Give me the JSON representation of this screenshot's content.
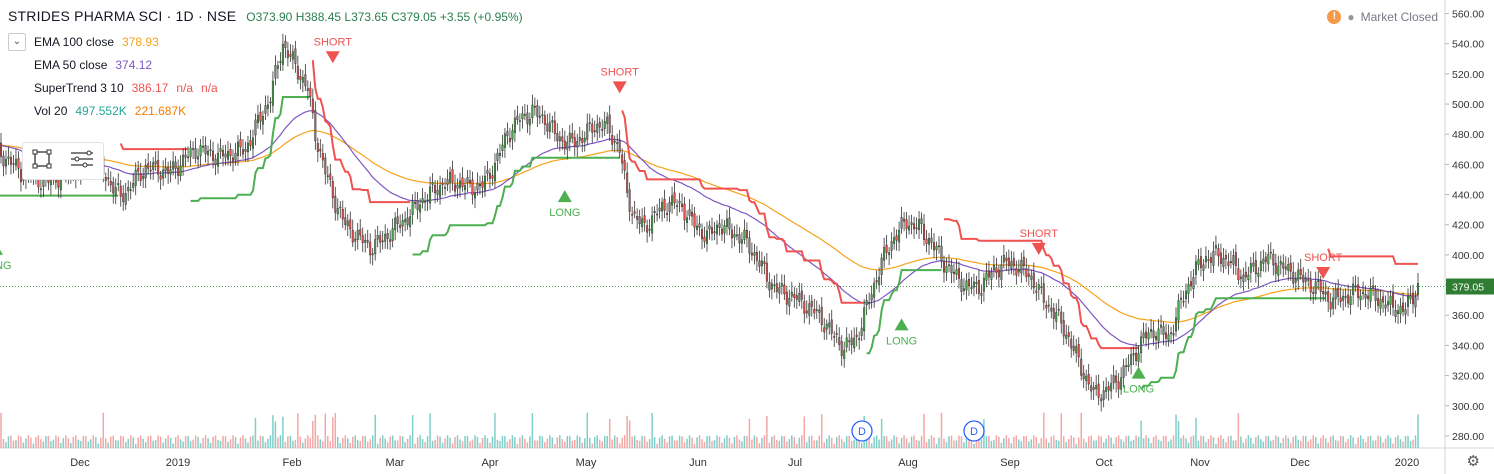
{
  "header": {
    "symbol": "STRIDES PHARMA SCI · 1D · NSE",
    "open": "O373.90",
    "high": "H388.45",
    "low": "L373.65",
    "close": "C379.05",
    "change": "+3.55 (+0.95%)",
    "market_status": "Market Closed"
  },
  "legend": [
    {
      "name": "EMA 100 close",
      "values": [
        "378.93"
      ],
      "colors": [
        "#f7a21b"
      ]
    },
    {
      "name": "EMA 50 close",
      "values": [
        "374.12"
      ],
      "colors": [
        "#7e57c2"
      ]
    },
    {
      "name": "SuperTrend 3 10",
      "values": [
        "386.17",
        "n/a",
        "n/a"
      ],
      "colors": [
        "#ef5350",
        "#ef5350",
        "#ef5350"
      ]
    },
    {
      "name": "Vol 20",
      "values": [
        "497.552K",
        "221.687K"
      ],
      "colors": [
        "#26a69a",
        "#f57c00"
      ]
    }
  ],
  "icons": {
    "collapse": "chevron-down-icon",
    "alert": "warning-icon",
    "settings": "gear-icon",
    "drawing": "rectangle-tool-icon",
    "lines": "lines-tool-icon"
  },
  "colors": {
    "up": "#4caf50",
    "down": "#ef5350",
    "ema100": "#f7a21b",
    "ema50": "#7e57c2",
    "st_up": "#4caf50",
    "st_down": "#ef5350",
    "vol_up": "#7fcfc8",
    "vol_down": "#f4a7a6",
    "last_price_bg": "#2e7d32"
  },
  "chart_data": {
    "type": "candlestick",
    "title": "STRIDES PHARMA SCI · 1D · NSE",
    "y_ticks": [
      280,
      300,
      320,
      340,
      360,
      380,
      400,
      420,
      440,
      460,
      480,
      500,
      520,
      540,
      560
    ],
    "ylim": [
      272,
      565
    ],
    "x_ticks": [
      "Dec",
      "2019",
      "Feb",
      "Mar",
      "Apr",
      "May",
      "Jun",
      "Jul",
      "Aug",
      "Sep",
      "Oct",
      "Nov",
      "Dec",
      "2020"
    ],
    "last_price": "379.05",
    "close_path": [
      [
        0,
        470
      ],
      [
        10,
        455
      ],
      [
        20,
        448
      ],
      [
        30,
        455
      ],
      [
        40,
        462
      ],
      [
        50,
        438
      ],
      [
        60,
        458
      ],
      [
        70,
        455
      ],
      [
        80,
        470
      ],
      [
        90,
        465
      ],
      [
        100,
        470
      ],
      [
        110,
        505
      ],
      [
        115,
        540
      ],
      [
        120,
        525
      ],
      [
        125,
        510
      ],
      [
        128,
        480
      ],
      [
        132,
        455
      ],
      [
        136,
        435
      ],
      [
        140,
        420
      ],
      [
        145,
        412
      ],
      [
        150,
        405
      ],
      [
        155,
        410
      ],
      [
        160,
        418
      ],
      [
        165,
        425
      ],
      [
        170,
        435
      ],
      [
        175,
        442
      ],
      [
        180,
        448
      ],
      [
        185,
        448
      ],
      [
        190,
        445
      ],
      [
        195,
        446
      ],
      [
        200,
        460
      ],
      [
        205,
        480
      ],
      [
        210,
        490
      ],
      [
        215,
        495
      ],
      [
        220,
        490
      ],
      [
        225,
        478
      ],
      [
        230,
        474
      ],
      [
        235,
        478
      ],
      [
        240,
        486
      ],
      [
        245,
        485
      ],
      [
        250,
        470
      ],
      [
        253,
        440
      ],
      [
        256,
        425
      ],
      [
        260,
        418
      ],
      [
        265,
        428
      ],
      [
        270,
        435
      ],
      [
        275,
        432
      ],
      [
        280,
        420
      ],
      [
        285,
        412
      ],
      [
        290,
        420
      ],
      [
        295,
        415
      ],
      [
        300,
        410
      ],
      [
        305,
        398
      ],
      [
        310,
        382
      ],
      [
        315,
        375
      ],
      [
        320,
        372
      ],
      [
        325,
        366
      ],
      [
        330,
        360
      ],
      [
        335,
        348
      ],
      [
        340,
        338
      ],
      [
        345,
        345
      ],
      [
        350,
        370
      ],
      [
        355,
        395
      ],
      [
        360,
        412
      ],
      [
        365,
        422
      ],
      [
        370,
        418
      ],
      [
        375,
        408
      ],
      [
        380,
        395
      ],
      [
        385,
        385
      ],
      [
        390,
        378
      ],
      [
        395,
        380
      ],
      [
        400,
        390
      ],
      [
        405,
        395
      ],
      [
        410,
        392
      ],
      [
        415,
        385
      ],
      [
        420,
        370
      ],
      [
        425,
        360
      ],
      [
        430,
        345
      ],
      [
        435,
        325
      ],
      [
        440,
        308
      ],
      [
        445,
        310
      ],
      [
        450,
        318
      ],
      [
        455,
        330
      ],
      [
        460,
        345
      ],
      [
        465,
        350
      ],
      [
        470,
        345
      ],
      [
        475,
        368
      ],
      [
        480,
        388
      ],
      [
        485,
        398
      ],
      [
        490,
        400
      ],
      [
        495,
        395
      ],
      [
        500,
        385
      ],
      [
        505,
        392
      ],
      [
        510,
        398
      ],
      [
        515,
        392
      ],
      [
        520,
        388
      ],
      [
        525,
        382
      ],
      [
        530,
        378
      ],
      [
        535,
        370
      ],
      [
        540,
        372
      ],
      [
        545,
        375
      ],
      [
        550,
        374
      ],
      [
        555,
        370
      ],
      [
        560,
        365
      ],
      [
        565,
        364
      ],
      [
        570,
        379
      ]
    ],
    "markers": [
      {
        "type": "SHORT",
        "day": 135,
        "price": 535
      },
      {
        "type": "LONG",
        "day": 228,
        "price": 435
      },
      {
        "type": "SHORT",
        "day": 250,
        "price": 515
      },
      {
        "type": "LONG",
        "day": 363,
        "price": 350
      },
      {
        "type": "SHORT",
        "day": 418,
        "price": 408
      },
      {
        "type": "LONG",
        "day": 458,
        "price": 318
      },
      {
        "type": "SHORT",
        "day": 532,
        "price": 392
      },
      {
        "type": "LONG",
        "day": 0,
        "price": 400
      }
    ],
    "dividend_markers": [
      "D",
      "D"
    ]
  }
}
